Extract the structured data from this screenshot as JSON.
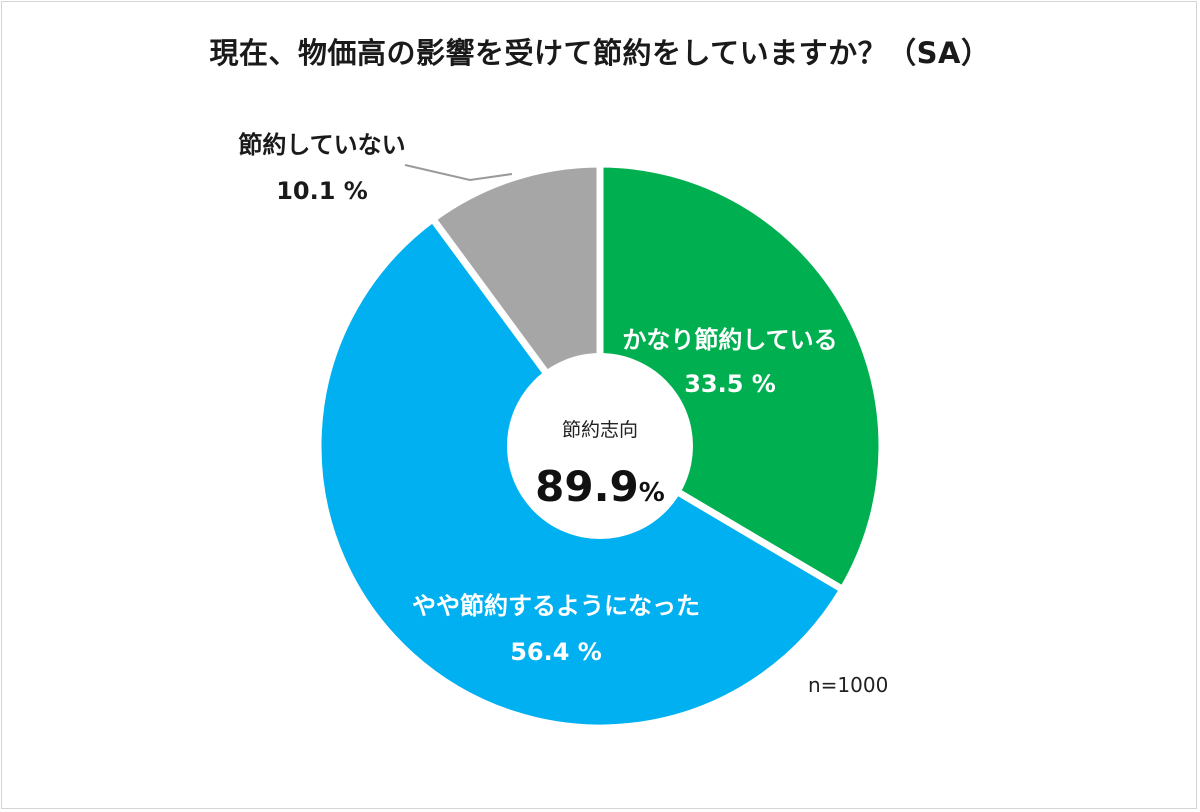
{
  "chart_data": {
    "type": "pie",
    "title": "現在、物価高の影響を受けて節約をしていますか？（SA）",
    "categories": [
      "かなり節約している",
      "やや節約するようになった",
      "節約していない"
    ],
    "values": [
      33.5,
      56.4,
      10.1
    ],
    "value_labels": [
      "33.5 %",
      "56.4 %",
      "10.1 %"
    ],
    "colors": [
      "#00b050",
      "#00b0f0",
      "#a6a6a6"
    ],
    "center": {
      "caption": "節約志向",
      "value": "89.9",
      "unit": "%"
    },
    "n_label": "n=1000"
  }
}
